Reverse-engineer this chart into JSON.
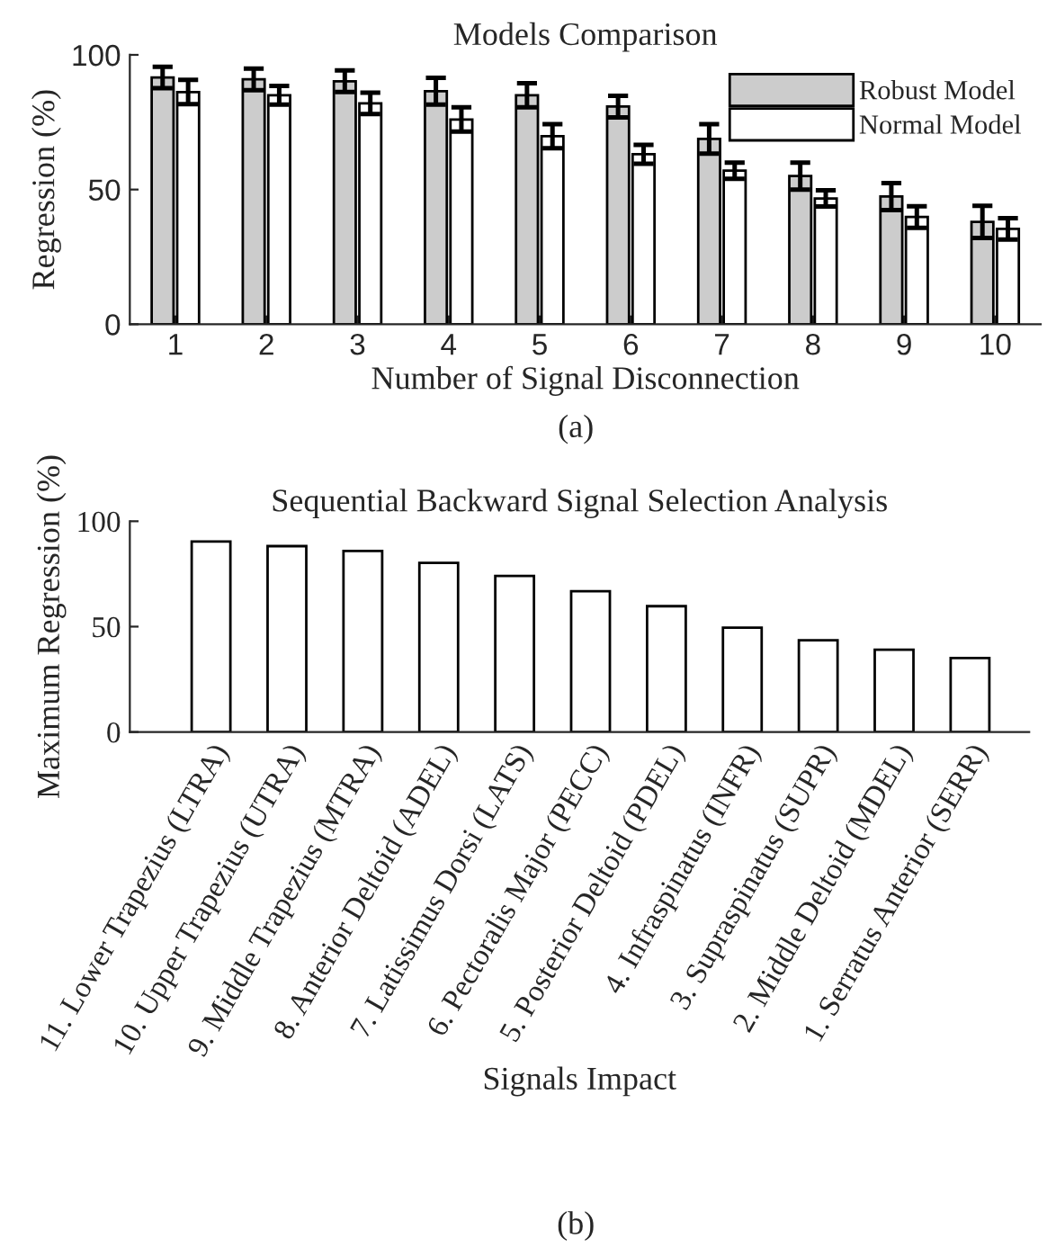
{
  "chart_data": [
    {
      "type": "bar",
      "title": "Models Comparison",
      "xlabel": "Number of Signal Disconnection",
      "ylabel": "Regression (%)",
      "annotations": [
        "(a)"
      ],
      "categories": [
        "1",
        "2",
        "3",
        "4",
        "5",
        "6",
        "7",
        "8",
        "9",
        "10"
      ],
      "series": [
        {
          "name": "Robust Model",
          "color": "#cccccc",
          "values": [
            91.6,
            90.9,
            90.2,
            86.5,
            85,
            80.8,
            68.8,
            55,
            47.4,
            38
          ],
          "errors": [
            4,
            4,
            4,
            5,
            4.5,
            4,
            5.5,
            5,
            5,
            6
          ]
        },
        {
          "name": "Normal Model",
          "color": "#ffffff",
          "values": [
            86.2,
            85,
            82,
            76,
            69.8,
            63.1,
            57,
            46.7,
            39.8,
            35.4
          ],
          "errors": [
            4.5,
            3.5,
            4,
            4.5,
            4.5,
            3.5,
            3,
            3,
            4,
            4
          ]
        }
      ],
      "ylim": [
        0,
        100
      ],
      "yticks": [
        0,
        50,
        100
      ],
      "legend": "top right",
      "grid": false
    },
    {
      "type": "bar",
      "title": "Sequential Backward Signal Selection Analysis",
      "xlabel": "Signals Impact",
      "ylabel": "Maximum Regression (%)",
      "annotations": [
        "(b)"
      ],
      "categories": [
        "11. Lower Trapezius (LTRA)",
        "10. Upper Trapezius (UTRA)",
        "9. Middle Trapezius (MTRA)",
        "8. Anterior Deltoid (ADEL)",
        "7. Latissimus Dorsi (LATS)",
        "6. Pectoralis Major (PECC)",
        "5. Posterior Deltoid (PDEL)",
        "4. Infraspinatus (INFR)",
        "3. Supraspinatus (SUPR)",
        "2. Middle Deltoid (MDEL)",
        "1. Serratus Anterior (SERR)"
      ],
      "values": [
        90.4,
        88.2,
        85.9,
        80.2,
        74.1,
        66.8,
        59.7,
        49.5,
        43.5,
        39,
        35.1
      ],
      "color": "#ffffff",
      "ylim": [
        0,
        100
      ],
      "yticks": [
        0,
        50,
        100
      ],
      "grid": false
    }
  ]
}
